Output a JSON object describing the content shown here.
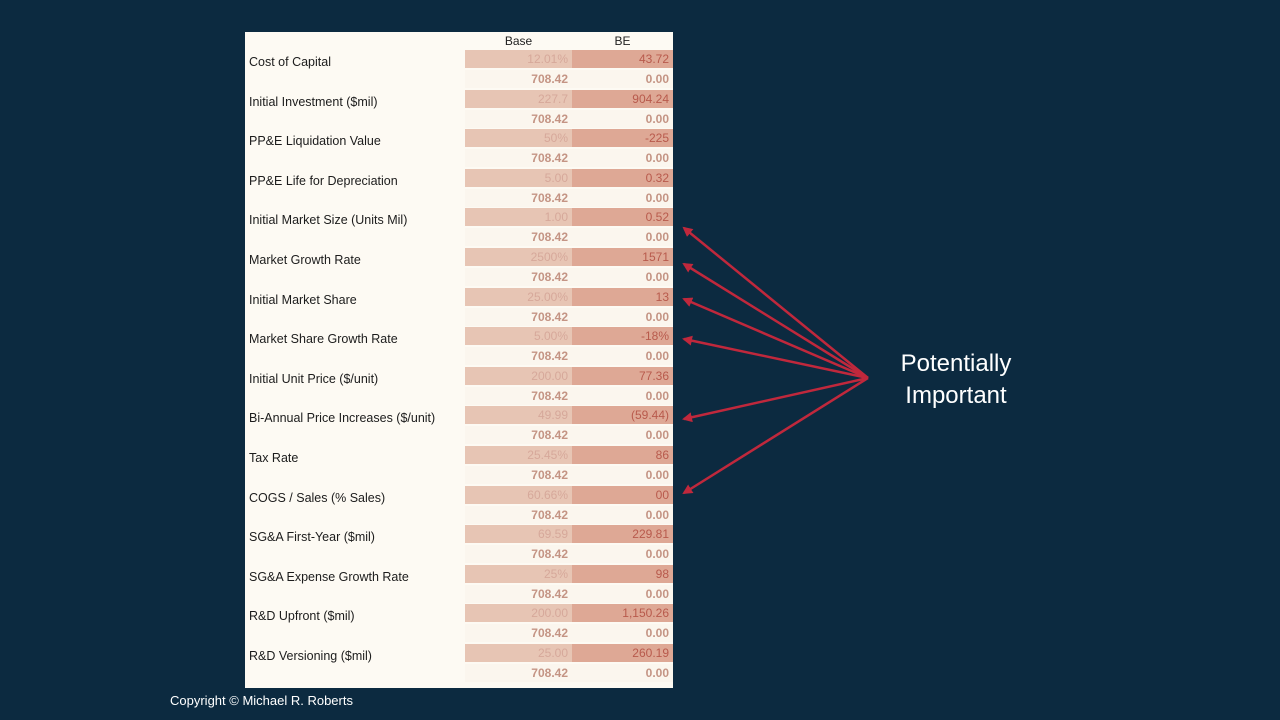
{
  "columns": {
    "base": "Base",
    "be": "BE"
  },
  "rows": [
    {
      "label": "Cost of Capital",
      "base": "12.01%",
      "be": "43.72",
      "base_npv": "708.42",
      "be_npv": "0.00"
    },
    {
      "label": "Initial Investment ($mil)",
      "base": "227.7",
      "be": "904.24",
      "base_npv": "708.42",
      "be_npv": "0.00"
    },
    {
      "label": "PP&E Liquidation Value",
      "base": "50%",
      "be": "-225",
      "base_npv": "708.42",
      "be_npv": "0.00"
    },
    {
      "label": "PP&E Life for Depreciation",
      "base": "5.00",
      "be": "0.32",
      "base_npv": "708.42",
      "be_npv": "0.00"
    },
    {
      "label": "Initial Market Size (Units Mil)",
      "base": "1.00",
      "be": "0.52",
      "base_npv": "708.42",
      "be_npv": "0.00"
    },
    {
      "label": "Market Growth Rate",
      "base": "2500%",
      "be": "1571",
      "base_npv": "708.42",
      "be_npv": "0.00"
    },
    {
      "label": "Initial Market Share",
      "base": "25.00%",
      "be": "13",
      "base_npv": "708.42",
      "be_npv": "0.00"
    },
    {
      "label": "Market Share Growth Rate",
      "base": "5.00%",
      "be": "-18%",
      "base_npv": "708.42",
      "be_npv": "0.00"
    },
    {
      "label": "Initial Unit Price ($/unit)",
      "base": "200.00",
      "be": "77.36",
      "base_npv": "708.42",
      "be_npv": "0.00"
    },
    {
      "label": "Bi-Annual Price Increases ($/unit)",
      "base": "49.99",
      "be": "(59.44)",
      "base_npv": "708.42",
      "be_npv": "0.00"
    },
    {
      "label": "Tax Rate",
      "base": "25.45%",
      "be": "86",
      "base_npv": "708.42",
      "be_npv": "0.00"
    },
    {
      "label": "COGS / Sales (% Sales)",
      "base": "60.66%",
      "be": "00",
      "base_npv": "708.42",
      "be_npv": "0.00"
    },
    {
      "label": "SG&A First-Year ($mil)",
      "base": "69.59",
      "be": "229.81",
      "base_npv": "708.42",
      "be_npv": "0.00"
    },
    {
      "label": "SG&A Expense Growth Rate",
      "base": "25%",
      "be": "98",
      "base_npv": "708.42",
      "be_npv": "0.00"
    },
    {
      "label": "R&D Upfront ($mil)",
      "base": "200.00",
      "be": "1,150.26",
      "base_npv": "708.42",
      "be_npv": "0.00"
    },
    {
      "label": "R&D Versioning ($mil)",
      "base": "25.00",
      "be": "260.19",
      "base_npv": "708.42",
      "be_npv": "0.00"
    }
  ],
  "callout": {
    "line1": "Potentially",
    "line2": "Important"
  },
  "copyright": "Copyright © Michael R. Roberts",
  "colors": {
    "background": "#0c2a40",
    "arrow": "#c0283c",
    "cell_base": "#e7c5b4",
    "cell_be": "#dea895"
  }
}
